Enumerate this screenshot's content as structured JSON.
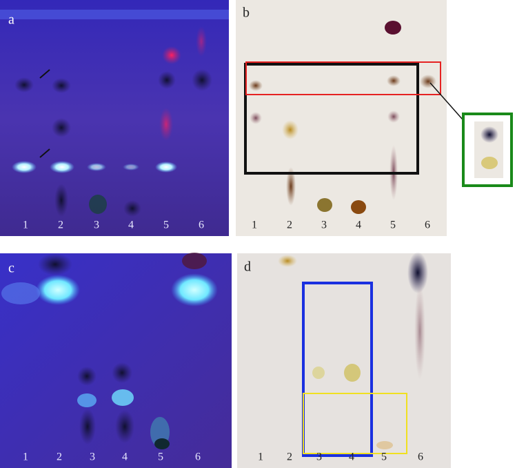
{
  "panels": [
    {
      "label": "a",
      "lanes": [
        "1",
        "2",
        "3",
        "4",
        "5",
        "6"
      ]
    },
    {
      "label": "b",
      "lanes": [
        "1",
        "2",
        "3",
        "4",
        "5",
        "6"
      ]
    },
    {
      "label": "c",
      "lanes": [
        "1",
        "2",
        "3",
        "4",
        "5",
        "6"
      ]
    },
    {
      "label": "d",
      "lanes": [
        "1",
        "2",
        "3",
        "4",
        "5",
        "6"
      ]
    }
  ]
}
